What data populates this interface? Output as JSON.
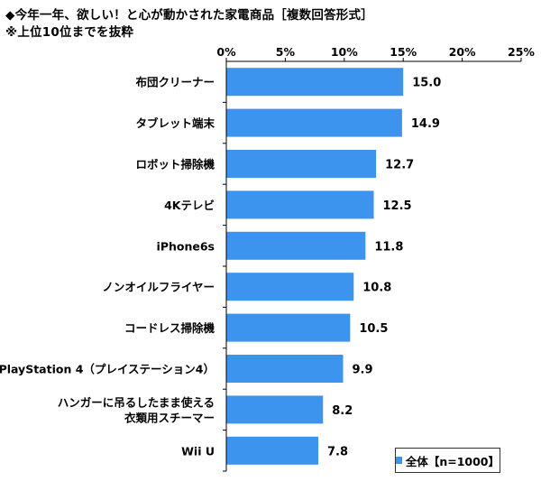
{
  "chart_data": {
    "type": "bar",
    "orientation": "horizontal",
    "title": "◆今年一年、欲しい！と心が動かされた家電商品［複数回答形式］",
    "subtitle": "※上位10位までを抜粋",
    "categories": [
      "布団クリーナー",
      "タブレット端末",
      "ロボット掃除機",
      "4Kテレビ",
      "iPhone6s",
      "ノンオイルフライヤー",
      "コードレス掃除機",
      "PlayStation 4（プレイステーション4）",
      [
        "ハンガーに吊るしたまま使える",
        "衣類用スチーマー"
      ],
      "Wii U"
    ],
    "series": [
      {
        "name": "全体【n=1000】",
        "values": [
          15.0,
          14.9,
          12.7,
          12.5,
          11.8,
          10.8,
          10.5,
          9.9,
          8.2,
          7.8
        ]
      }
    ],
    "value_labels": [
      "15.0",
      "14.9",
      "12.7",
      "12.5",
      "11.8",
      "10.8",
      "10.5",
      "9.9",
      "8.2",
      "7.8"
    ],
    "xlim": [
      0,
      25
    ],
    "xticks": [
      "0%",
      "5%",
      "10%",
      "15%",
      "20%",
      "25%"
    ],
    "grid": false,
    "legend_position": "bottom-right",
    "bar_color": "#3d94ee"
  }
}
